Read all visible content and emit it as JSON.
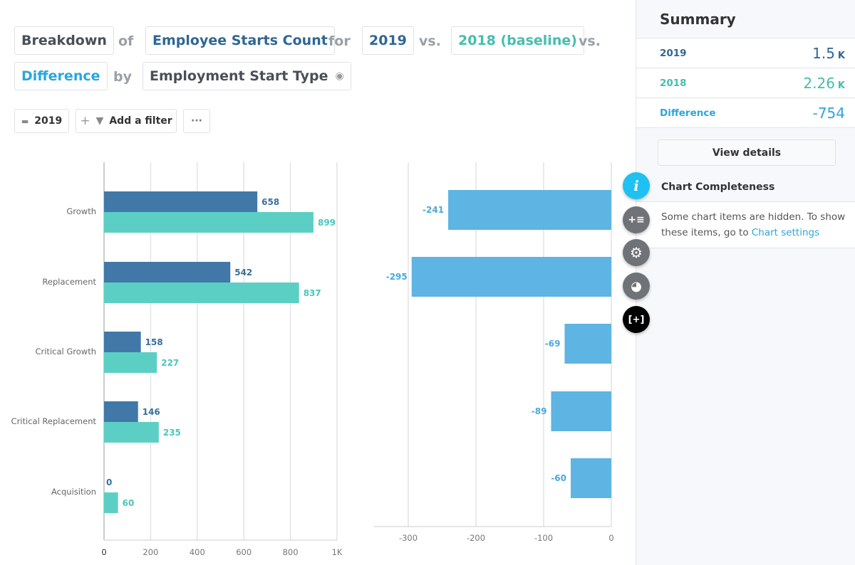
{
  "query": {
    "breakdown": "Breakdown",
    "of": "of",
    "metric": "Employee Starts Count",
    "for": "for",
    "year": "2019",
    "vs1": "vs.",
    "baseline": "2018 (baseline)",
    "vs2": "vs.",
    "difference": "Difference",
    "by": "by",
    "dimension": "Employment Start Type"
  },
  "toolbar": {
    "date": "2019",
    "add_filter": "Add a filter",
    "more": "···"
  },
  "summary": {
    "title": "Summary",
    "rows": [
      {
        "label": "2019",
        "value": "1.5",
        "unit": "K"
      },
      {
        "label": "2018",
        "value": "2.26",
        "unit": "K"
      },
      {
        "label": "Difference",
        "value": "-754",
        "unit": ""
      }
    ],
    "view_details": "View details",
    "completeness_title": "Chart Completeness",
    "completeness_text": "Some chart items are hidden. To show these items, go to ",
    "completeness_link": "Chart settings"
  },
  "colors": {
    "s2019": "#4178a8",
    "s2018": "#5ccfc5",
    "diff": "#5eb4e2",
    "accent": "#1ec1f2"
  },
  "icons": [
    "calendar-icon",
    "plus-icon",
    "filter-icon",
    "eye-icon",
    "info-icon",
    "add-list-icon",
    "gear-icon",
    "palette-icon",
    "fullscreen-icon"
  ],
  "chart_data": [
    {
      "type": "bar",
      "orientation": "horizontal",
      "categories": [
        "Growth",
        "Replacement",
        "Critical Growth",
        "Critical Replacement",
        "Acquisition"
      ],
      "series": [
        {
          "name": "2019",
          "values": [
            658,
            542,
            158,
            146,
            0
          ]
        },
        {
          "name": "2018",
          "values": [
            899,
            837,
            227,
            235,
            60
          ]
        }
      ],
      "xlim": [
        0,
        1000
      ],
      "xticks": [
        "0",
        "200",
        "400",
        "600",
        "800",
        "1K"
      ],
      "grid": true
    },
    {
      "type": "bar",
      "orientation": "horizontal",
      "categories": [
        "Growth",
        "Replacement",
        "Critical Growth",
        "Critical Replacement",
        "Acquisition"
      ],
      "series": [
        {
          "name": "Difference",
          "values": [
            -241,
            -295,
            -69,
            -89,
            -60
          ]
        }
      ],
      "xlim": [
        -335,
        0
      ],
      "xticks": [
        "-300",
        "-200",
        "-100",
        "0"
      ],
      "grid": true
    }
  ]
}
